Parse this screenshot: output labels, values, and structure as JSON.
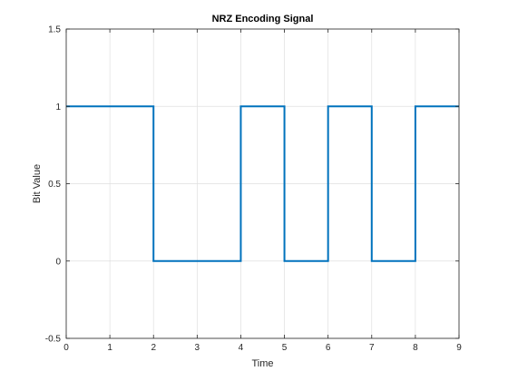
{
  "chart_data": {
    "type": "line",
    "title": "NRZ Encoding Signal",
    "xlabel": "Time",
    "ylabel": "Bit Value",
    "xlim": [
      0,
      9
    ],
    "ylim": [
      -0.5,
      1.5
    ],
    "x_ticks": [
      "0",
      "1",
      "2",
      "3",
      "4",
      "5",
      "6",
      "7",
      "8",
      "9"
    ],
    "y_ticks": [
      "-0.5",
      "0",
      "0.5",
      "1",
      "1.5"
    ],
    "grid": true,
    "line_style": "step",
    "series": [
      {
        "color": "#0072BD",
        "x": [
          0,
          2,
          2,
          4,
          4,
          5,
          5,
          6,
          6,
          7,
          7,
          8,
          8,
          9
        ],
        "y": [
          1,
          1,
          0,
          0,
          1,
          1,
          0,
          0,
          1,
          1,
          0,
          0,
          1,
          1
        ]
      }
    ]
  }
}
